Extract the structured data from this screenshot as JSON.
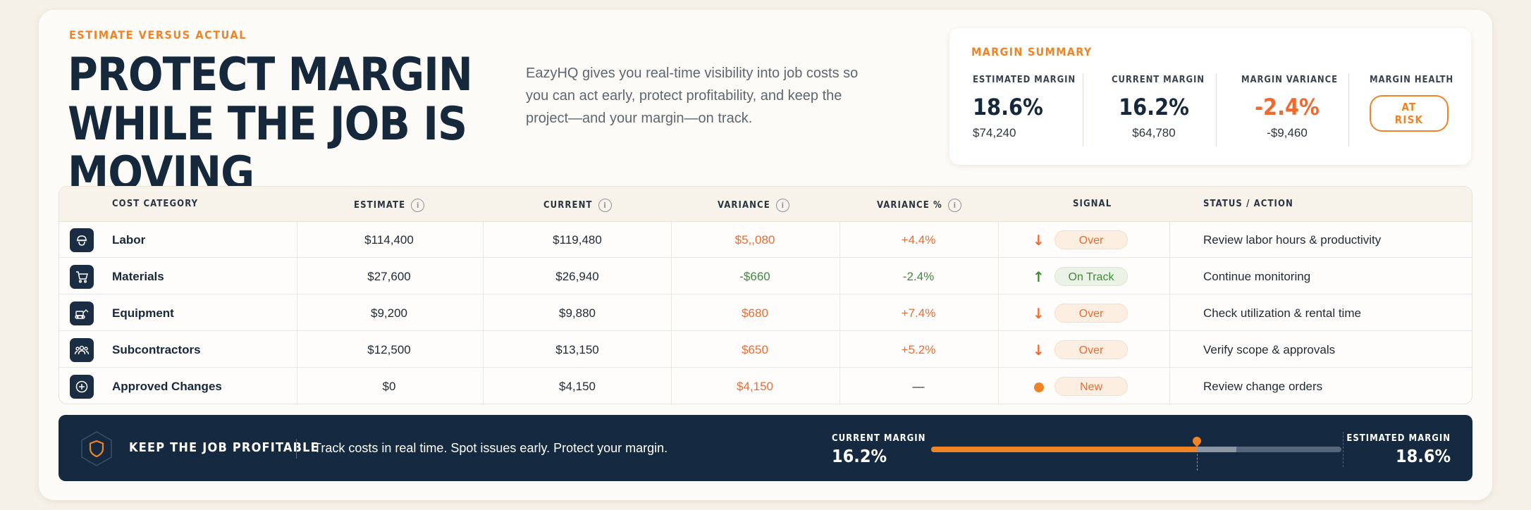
{
  "header": {
    "eyebrow": "ESTIMATE VERSUS ACTUAL",
    "headline": "PROTECT MARGIN WHILE THE JOB IS MOVING",
    "intro": "EazyHQ gives you real-time visibility into job costs so you can act early, protect profitability, and keep the project—and your margin—on track."
  },
  "summary": {
    "title": "MARGIN SUMMARY",
    "estimated": {
      "label": "ESTIMATED MARGIN",
      "value": "18.6%",
      "amount": "$74,240"
    },
    "current": {
      "label": "CURRENT MARGIN",
      "value": "16.2%",
      "amount": "$64,780"
    },
    "variance": {
      "label": "MARGIN VARIANCE",
      "value": "-2.4%",
      "amount": "-$9,460"
    },
    "health": {
      "label": "MARGIN HEALTH",
      "badge": "AT RISK"
    }
  },
  "table": {
    "columns": {
      "category": "COST CATEGORY",
      "estimate": "ESTIMATE",
      "current": "CURRENT",
      "variance": "VARIANCE",
      "variance_pct": "VARIANCE %",
      "signal": "SIGNAL",
      "status": "STATUS / ACTION"
    },
    "rows": [
      {
        "icon": "worker-helmet-icon",
        "name": "Labor",
        "estimate": "$114,400",
        "current": "$119,480",
        "variance": "$5,,080",
        "variance_pct": "+4.4%",
        "signal": "Over",
        "signal_type": "down",
        "action": "Review labor hours & productivity"
      },
      {
        "icon": "shopping-cart-icon",
        "name": "Materials",
        "estimate": "$27,600",
        "current": "$26,940",
        "variance": "-$660",
        "variance_pct": "-2.4%",
        "signal": "On Track",
        "signal_type": "up",
        "action": "Continue monitoring"
      },
      {
        "icon": "excavator-icon",
        "name": "Equipment",
        "estimate": "$9,200",
        "current": "$9,880",
        "variance": "$680",
        "variance_pct": "+7.4%",
        "signal": "Over",
        "signal_type": "down",
        "action": "Check utilization & rental time"
      },
      {
        "icon": "team-icon",
        "name": "Subcontractors",
        "estimate": "$12,500",
        "current": "$13,150",
        "variance": "$650",
        "variance_pct": "+5.2%",
        "signal": "Over",
        "signal_type": "down",
        "action": "Verify scope & approvals"
      },
      {
        "icon": "plus-circle-icon",
        "name": "Approved Changes",
        "estimate": "$0",
        "current": "$4,150",
        "variance": "$4,150",
        "variance_pct": "—",
        "signal": "New",
        "signal_type": "dot",
        "action": "Review change orders"
      }
    ]
  },
  "banner": {
    "title": "KEEP THE JOB PROFITABLE",
    "text": "Track costs in real time. Spot issues early. Protect your margin.",
    "current_label": "CURRENT MARGIN",
    "current_value": "16.2%",
    "estimated_label": "ESTIMATED MARGIN",
    "estimated_value": "18.6%",
    "current_fraction": 0.162,
    "estimated_fraction": 0.186,
    "scale_max_fraction": 0.25
  },
  "colors": {
    "accent": "#ef8426",
    "navy": "#152a40",
    "over": "#ef6a2c",
    "on_track": "#3f8a3b"
  }
}
